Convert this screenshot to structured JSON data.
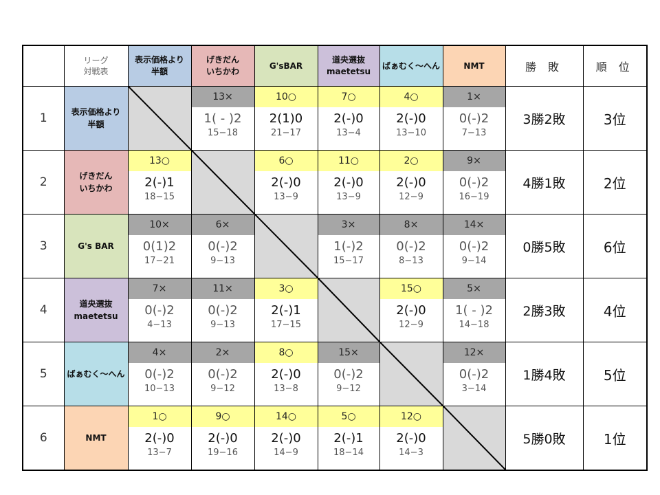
{
  "header": {
    "corner": [
      "リーグ",
      "対戦表"
    ],
    "record_label": "勝 敗",
    "rank_label": "順 位"
  },
  "teams": [
    {
      "name": [
        "表示価格より",
        "半額"
      ],
      "color": "#b8cce4"
    },
    {
      "name": [
        "げきだん",
        "いちかわ"
      ],
      "color": "#e6b8b7"
    },
    {
      "name": [
        "G's BAR"
      ],
      "header_name": [
        "G'sBAR"
      ],
      "color": "#d8e4bc"
    },
    {
      "name": [
        "道央選抜",
        "maetetsu"
      ],
      "color": "#ccc0da"
    },
    {
      "name": [
        "ばぁむく～へん"
      ],
      "color": "#b7dee8"
    },
    {
      "name": [
        "NMT"
      ],
      "color": "#fcd5b4"
    }
  ],
  "colors": {
    "win": "#ffff99",
    "loss": "#a6a6a6",
    "diagonal": "#d9d9d9"
  },
  "rows": [
    {
      "no": "1",
      "record": "3勝2敗",
      "rank": "3位",
      "cells": [
        null,
        {
          "match": "13×",
          "win": false,
          "score": "1( - )2",
          "points": "15−18"
        },
        {
          "match": "10○",
          "win": true,
          "score": "2(1)0",
          "points": "21−17"
        },
        {
          "match": "7○",
          "win": true,
          "score": "2(-)0",
          "points": "13−4"
        },
        {
          "match": "4○",
          "win": true,
          "score": "2(-)0",
          "points": "13−10"
        },
        {
          "match": "1×",
          "win": false,
          "score": "0(-)2",
          "points": "7−13"
        }
      ]
    },
    {
      "no": "2",
      "record": "4勝1敗",
      "rank": "2位",
      "cells": [
        {
          "match": "13○",
          "win": true,
          "score": "2(-)1",
          "points": "18−15"
        },
        null,
        {
          "match": "6○",
          "win": true,
          "score": "2(-)0",
          "points": "13−9"
        },
        {
          "match": "11○",
          "win": true,
          "score": "2(-)0",
          "points": "13−9"
        },
        {
          "match": "2○",
          "win": true,
          "score": "2(-)0",
          "points": "12−9"
        },
        {
          "match": "9×",
          "win": false,
          "score": "0(-)2",
          "points": "16−19"
        }
      ]
    },
    {
      "no": "3",
      "record": "0勝5敗",
      "rank": "6位",
      "cells": [
        {
          "match": "10×",
          "win": false,
          "score": "0(1)2",
          "points": "17−21"
        },
        {
          "match": "6×",
          "win": false,
          "score": "0(-)2",
          "points": "9−13"
        },
        null,
        {
          "match": "3×",
          "win": false,
          "score": "1(-)2",
          "points": "15−17"
        },
        {
          "match": "8×",
          "win": false,
          "score": "0(-)2",
          "points": "8−13"
        },
        {
          "match": "14×",
          "win": false,
          "score": "0(-)2",
          "points": "9−14"
        }
      ]
    },
    {
      "no": "4",
      "record": "2勝3敗",
      "rank": "4位",
      "cells": [
        {
          "match": "7×",
          "win": false,
          "score": "0(-)2",
          "points": "4−13"
        },
        {
          "match": "11×",
          "win": false,
          "score": "0(-)2",
          "points": "9−13"
        },
        {
          "match": "3○",
          "win": true,
          "score": "2(-)1",
          "points": "17−15"
        },
        null,
        {
          "match": "15○",
          "win": true,
          "score": "2(-)0",
          "points": "12−9"
        },
        {
          "match": "5×",
          "win": false,
          "score": "1( - )2",
          "points": "14−18"
        }
      ]
    },
    {
      "no": "5",
      "record": "1勝4敗",
      "rank": "5位",
      "cells": [
        {
          "match": "4×",
          "win": false,
          "score": "0(-)2",
          "points": "10−13"
        },
        {
          "match": "2×",
          "win": false,
          "score": "0(-)2",
          "points": "9−12"
        },
        {
          "match": "8○",
          "win": true,
          "score": "2(-)0",
          "points": "13−8"
        },
        {
          "match": "15×",
          "win": false,
          "score": "0(-)2",
          "points": "9−12"
        },
        null,
        {
          "match": "12×",
          "win": false,
          "score": "0(-)2",
          "points": "3−14"
        }
      ]
    },
    {
      "no": "6",
      "record": "5勝0敗",
      "rank": "1位",
      "cells": [
        {
          "match": "1○",
          "win": true,
          "score": "2(-)0",
          "points": "13−7"
        },
        {
          "match": "9○",
          "win": true,
          "score": "2(-)0",
          "points": "19−16"
        },
        {
          "match": "14○",
          "win": true,
          "score": "2(-)0",
          "points": "14−9"
        },
        {
          "match": "5○",
          "win": true,
          "score": "2(-)1",
          "points": "18−14"
        },
        {
          "match": "12○",
          "win": true,
          "score": "2(-)0",
          "points": "14−3"
        },
        null
      ]
    }
  ]
}
